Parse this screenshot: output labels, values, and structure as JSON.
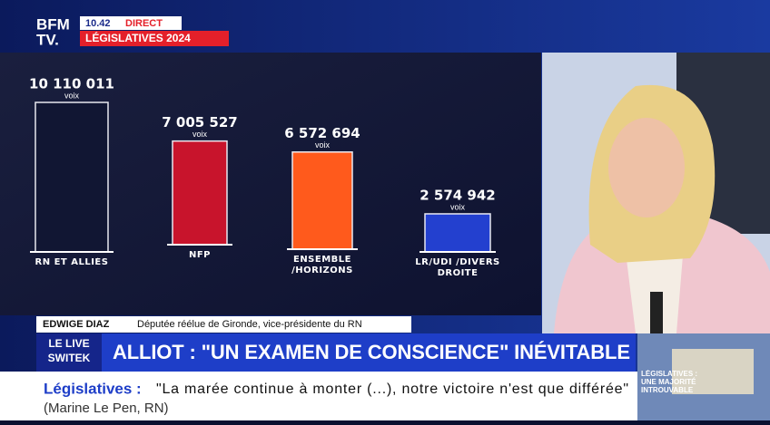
{
  "chart_data": {
    "type": "bar",
    "categories": [
      "RN ET ALLIÉS",
      "NFP",
      "ENSEMBLE /HORIZONS",
      "LR/UDI /DIVERS DROITE"
    ],
    "values": [
      10110011,
      7005527,
      6572694,
      2574942
    ],
    "value_labels": [
      "10 110 011",
      "7 005 527",
      "6 572 694",
      "2 574 942"
    ],
    "unit": "voix",
    "colors": [
      "#111633",
      "#c8142c",
      "#ff5a1c",
      "#2340cf"
    ]
  },
  "header": {
    "logo_top": "BFM",
    "logo_bottom": "TV.",
    "time": "10.42",
    "live": "DIRECT",
    "program": "LÉGISLATIVES 2024"
  },
  "lower_third": {
    "name": "EDWIGE DIAZ",
    "role": "Députée réélue de Gironde, vice-présidente du RN",
    "show_top": "LE LIVE",
    "show_bottom": "SWITEK",
    "headline": "ALLIOT : \"UN EXAMEN  DE CONSCIENCE\" INÉVITABLE"
  },
  "ticker": {
    "label": "Législatives :",
    "quote": "\"La marée continue à monter (...), notre victoire n'est que différée\"",
    "source": "(Marine Le Pen, RN)"
  },
  "thumbnail": {
    "caption": "LÉGISLATIVES : UNE MAJORITÉ INTROUVABLE"
  }
}
